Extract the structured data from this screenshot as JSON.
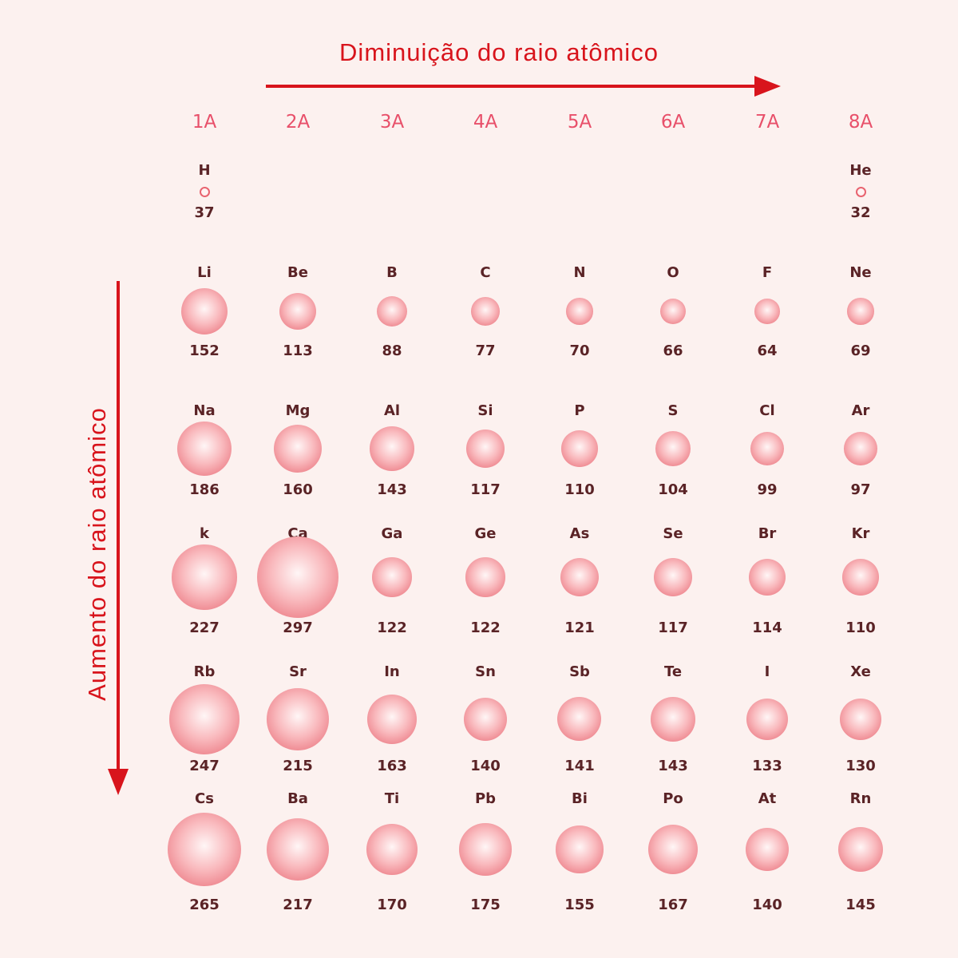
{
  "titles": {
    "horizontal": "Diminuição do raio atômico",
    "vertical": "Aumento do raio atômico"
  },
  "colors": {
    "arrow": "#d8141c",
    "group_label": "#e8506a",
    "atom_fill": "#f4a3a9",
    "text": "#5a2326",
    "background": "#fcf1ef"
  },
  "groups": [
    "1A",
    "2A",
    "3A",
    "4A",
    "5A",
    "6A",
    "7A",
    "8A"
  ],
  "rows": [
    [
      {
        "symbol": "H",
        "radius": "37"
      },
      null,
      null,
      null,
      null,
      null,
      null,
      {
        "symbol": "He",
        "radius": "32"
      }
    ],
    [
      {
        "symbol": "Li",
        "radius": "152"
      },
      {
        "symbol": "Be",
        "radius": "113"
      },
      {
        "symbol": "B",
        "radius": "88"
      },
      {
        "symbol": "C",
        "radius": "77"
      },
      {
        "symbol": "N",
        "radius": "70"
      },
      {
        "symbol": "O",
        "radius": "66"
      },
      {
        "symbol": "F",
        "radius": "64"
      },
      {
        "symbol": "Ne",
        "radius": "69"
      }
    ],
    [
      {
        "symbol": "Na",
        "radius": "186"
      },
      {
        "symbol": "Mg",
        "radius": "160"
      },
      {
        "symbol": "Al",
        "radius": "143"
      },
      {
        "symbol": "Si",
        "radius": "117"
      },
      {
        "symbol": "P",
        "radius": "110"
      },
      {
        "symbol": "S",
        "radius": "104"
      },
      {
        "symbol": "Cl",
        "radius": "99"
      },
      {
        "symbol": "Ar",
        "radius": "97"
      }
    ],
    [
      {
        "symbol": "k",
        "radius": "227"
      },
      {
        "symbol": "Ca",
        "radius": "297"
      },
      {
        "symbol": "Ga",
        "radius": "122"
      },
      {
        "symbol": "Ge",
        "radius": "122"
      },
      {
        "symbol": "As",
        "radius": "121"
      },
      {
        "symbol": "Se",
        "radius": "117"
      },
      {
        "symbol": "Br",
        "radius": "114"
      },
      {
        "symbol": "Kr",
        "radius": "110"
      }
    ],
    [
      {
        "symbol": "Rb",
        "radius": "247"
      },
      {
        "symbol": "Sr",
        "radius": "215"
      },
      {
        "symbol": "In",
        "radius": "163"
      },
      {
        "symbol": "Sn",
        "radius": "140"
      },
      {
        "symbol": "Sb",
        "radius": "141"
      },
      {
        "symbol": "Te",
        "radius": "143"
      },
      {
        "symbol": "I",
        "radius": "133"
      },
      {
        "symbol": "Xe",
        "radius": "130"
      }
    ],
    [
      {
        "symbol": "Cs",
        "radius": "265"
      },
      {
        "symbol": "Ba",
        "radius": "217"
      },
      {
        "symbol": "Ti",
        "radius": "170"
      },
      {
        "symbol": "Pb",
        "radius": "175"
      },
      {
        "symbol": "Bi",
        "radius": "155"
      },
      {
        "symbol": "Po",
        "radius": "167"
      },
      {
        "symbol": "At",
        "radius": "140"
      },
      {
        "symbol": "Rn",
        "radius": "145"
      }
    ]
  ]
}
